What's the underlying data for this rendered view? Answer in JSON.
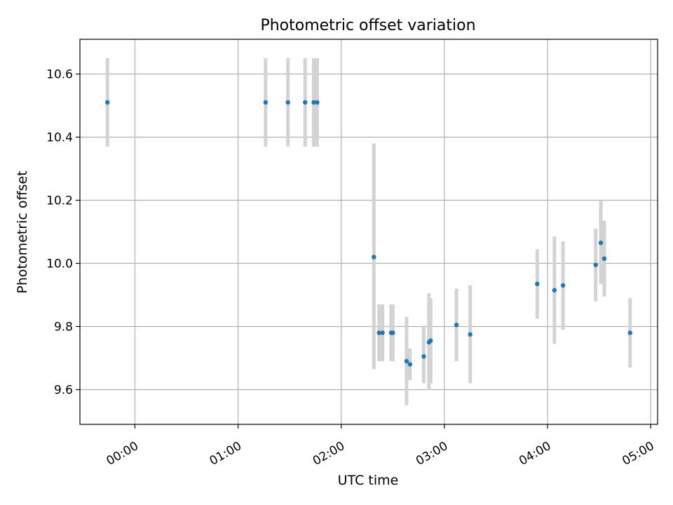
{
  "chart_data": {
    "type": "scatter",
    "title": "Photometric offset variation",
    "xlabel": "UTC time",
    "ylabel": "Photometric offset",
    "x_axis": {
      "kind": "time",
      "range": [
        "23:28",
        "05:04"
      ],
      "ticks": [
        "00:00",
        "01:00",
        "02:00",
        "03:00",
        "04:00",
        "05:00"
      ]
    },
    "y_axis": {
      "range": [
        9.49,
        10.71
      ],
      "ticks": [
        "9.6",
        "9.8",
        "10.0",
        "10.2",
        "10.4",
        "10.6"
      ]
    },
    "grid": true,
    "marker_color": "#1f77b4",
    "errorbar_color": "#d3d3d3",
    "points": [
      {
        "t": "23:44",
        "y": 10.51,
        "lo": 10.37,
        "hi": 10.65
      },
      {
        "t": "01:16",
        "y": 10.51,
        "lo": 10.37,
        "hi": 10.65
      },
      {
        "t": "01:29",
        "y": 10.51,
        "lo": 10.37,
        "hi": 10.65
      },
      {
        "t": "01:39",
        "y": 10.51,
        "lo": 10.37,
        "hi": 10.65
      },
      {
        "t": "01:44",
        "y": 10.51,
        "lo": 10.37,
        "hi": 10.65
      },
      {
        "t": "01:46",
        "y": 10.51,
        "lo": 10.37,
        "hi": 10.65
      },
      {
        "t": "02:19",
        "y": 10.02,
        "lo": 9.665,
        "hi": 10.38
      },
      {
        "t": "02:22",
        "y": 9.78,
        "lo": 9.69,
        "hi": 9.87
      },
      {
        "t": "02:24",
        "y": 9.78,
        "lo": 9.69,
        "hi": 9.87
      },
      {
        "t": "02:29",
        "y": 9.78,
        "lo": 9.69,
        "hi": 9.87
      },
      {
        "t": "02:30",
        "y": 9.78,
        "lo": 9.69,
        "hi": 9.87
      },
      {
        "t": "02:38",
        "y": 9.69,
        "lo": 9.55,
        "hi": 9.83
      },
      {
        "t": "02:40",
        "y": 9.68,
        "lo": 9.63,
        "hi": 9.73
      },
      {
        "t": "02:48",
        "y": 9.705,
        "lo": 9.62,
        "hi": 9.8
      },
      {
        "t": "02:51",
        "y": 9.75,
        "lo": 9.6,
        "hi": 9.905
      },
      {
        "t": "02:52",
        "y": 9.755,
        "lo": 9.62,
        "hi": 9.89
      },
      {
        "t": "03:07",
        "y": 9.805,
        "lo": 9.69,
        "hi": 9.92
      },
      {
        "t": "03:15",
        "y": 9.775,
        "lo": 9.62,
        "hi": 9.93
      },
      {
        "t": "03:54",
        "y": 9.935,
        "lo": 9.825,
        "hi": 10.045
      },
      {
        "t": "04:04",
        "y": 9.915,
        "lo": 9.745,
        "hi": 10.085
      },
      {
        "t": "04:09",
        "y": 9.93,
        "lo": 9.79,
        "hi": 10.07
      },
      {
        "t": "04:28",
        "y": 9.995,
        "lo": 9.88,
        "hi": 10.11
      },
      {
        "t": "04:31",
        "y": 10.065,
        "lo": 9.935,
        "hi": 10.2
      },
      {
        "t": "04:33",
        "y": 10.015,
        "lo": 9.895,
        "hi": 10.135
      },
      {
        "t": "04:48",
        "y": 9.78,
        "lo": 9.67,
        "hi": 9.89
      }
    ]
  }
}
